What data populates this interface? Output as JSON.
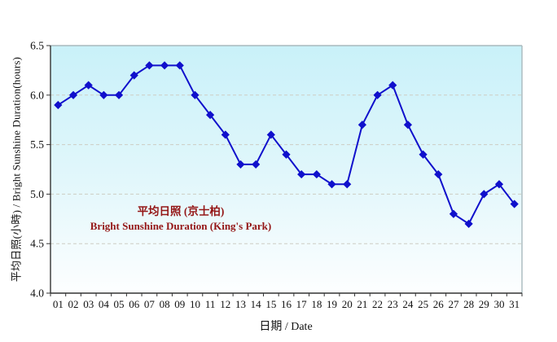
{
  "chart_data": {
    "type": "line",
    "title": "",
    "categories": [
      "01",
      "02",
      "03",
      "04",
      "05",
      "06",
      "07",
      "08",
      "09",
      "10",
      "11",
      "12",
      "13",
      "14",
      "15",
      "16",
      "17",
      "18",
      "19",
      "20",
      "21",
      "22",
      "23",
      "24",
      "25",
      "26",
      "27",
      "28",
      "29",
      "30",
      "31"
    ],
    "series": [
      {
        "name_zh": "平均日照 (京士柏)",
        "name_en": "Bright Sunshine Duration (King's Park)",
        "values": [
          5.9,
          6.0,
          6.1,
          6.0,
          6.0,
          6.2,
          6.3,
          6.3,
          6.3,
          6.0,
          5.8,
          5.6,
          5.3,
          5.3,
          5.6,
          5.4,
          5.2,
          5.2,
          5.1,
          5.1,
          5.7,
          6.0,
          6.1,
          5.7,
          5.4,
          5.2,
          4.8,
          4.7,
          5.0,
          5.1,
          4.9
        ]
      }
    ],
    "xlabel": "日期 / Date",
    "ylabel": "平均日照(小時) / Bright Sunshine Duration(hours)",
    "ylim": [
      4.0,
      6.5
    ],
    "yticks": [
      4.0,
      4.5,
      5.0,
      5.5,
      6.0,
      6.5
    ],
    "ytick_labels": [
      "4.0",
      "4.5",
      "5.0",
      "5.5",
      "6.0",
      "6.5"
    ],
    "grid": "horizontal-dashed",
    "legend_position": "in-plot-annotation",
    "colors": {
      "line": "#1010cc",
      "marker": "#1010cc",
      "annotation_text": "#941616",
      "plot_bg_top": "#c9f1f9",
      "plot_bg_bottom": "#fdfeff",
      "gridline": "#cdcdc3",
      "axis_dark": "#333333",
      "axis_light": "#a9b9bd"
    }
  }
}
